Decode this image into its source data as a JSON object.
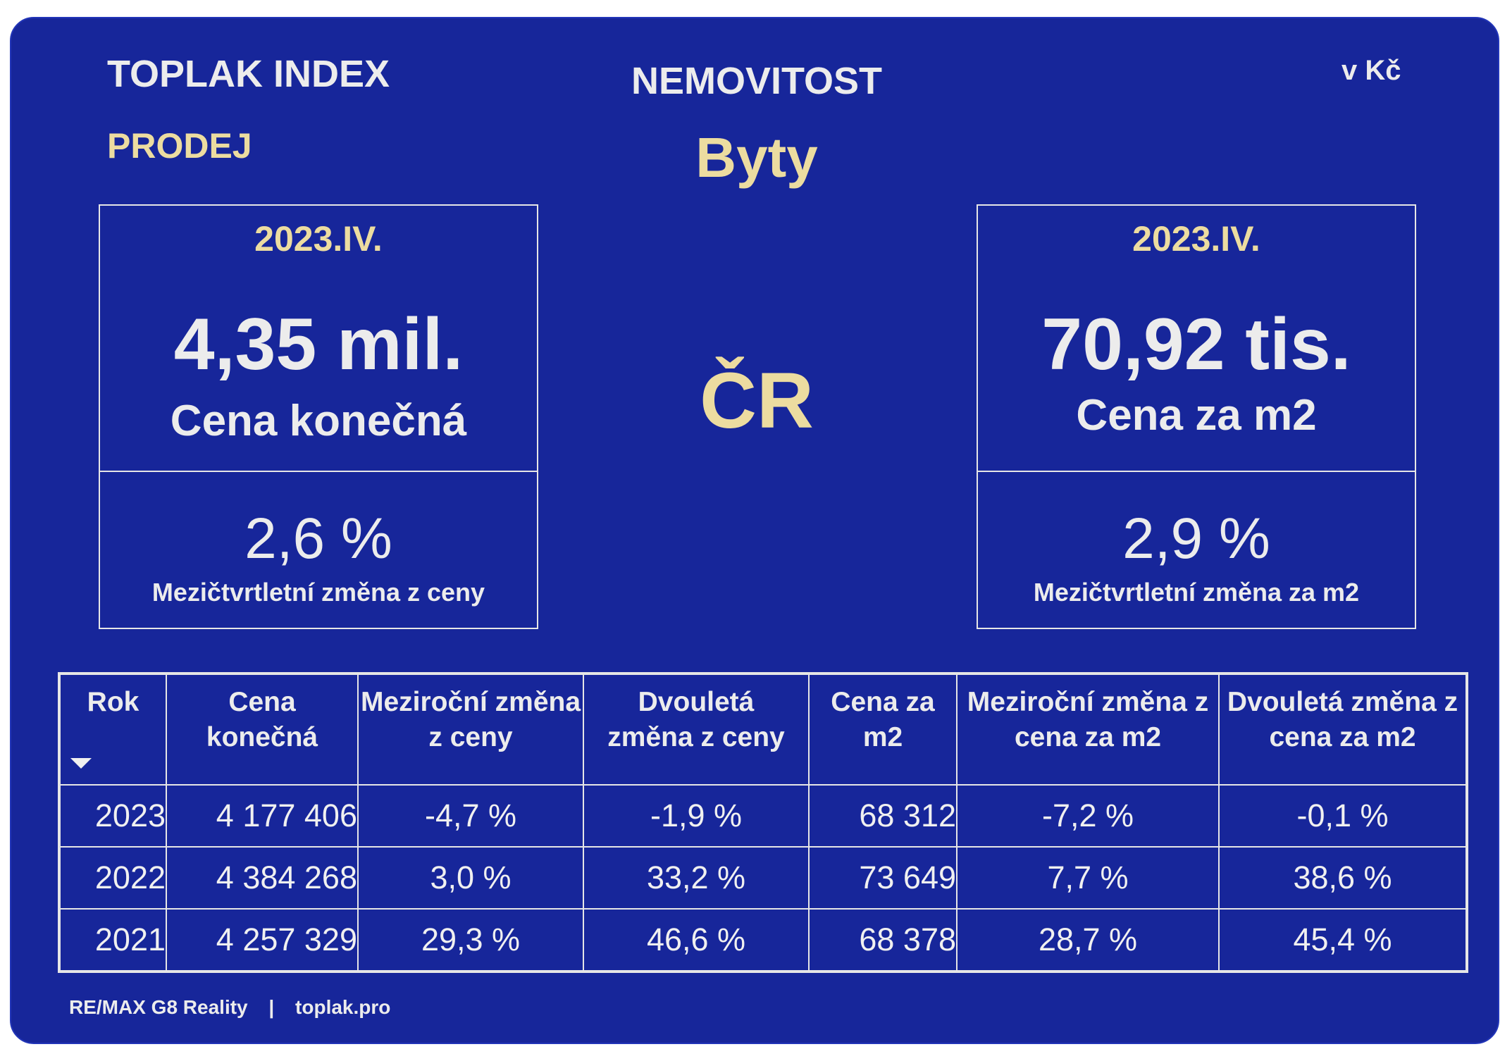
{
  "header": {
    "brand": "TOPLAK INDEX",
    "mode": "PRODEJ",
    "category_label": "NEMOVITOST",
    "category_value": "Byty",
    "currency": "v Kč"
  },
  "region": "ČR",
  "card_left": {
    "period": "2023.IV.",
    "value": "4,35 mil.",
    "label": "Cena konečná",
    "change": "2,6 %",
    "change_label": "Mezičtvrtletní změna z ceny"
  },
  "card_right": {
    "period": "2023.IV.",
    "value": "70,92 tis.",
    "label": "Cena za m2",
    "change": "2,9 %",
    "change_label": "Mezičtvrtletní změna za m2"
  },
  "table": {
    "headers": [
      "Rok",
      "Cena konečná",
      "Meziroční změna z ceny",
      "Dvouletá změna z ceny",
      "Cena za m2",
      "Meziroční změna z cena za m2",
      "Dvouletá změna z cena za m2"
    ],
    "rows": [
      [
        "2023",
        "4 177 406",
        "-4,7 %",
        "-1,9 %",
        "68 312",
        "-7,2 %",
        "-0,1 %"
      ],
      [
        "2022",
        "4 384 268",
        "3,0 %",
        "33,2 %",
        "73 649",
        "7,7 %",
        "38,6 %"
      ],
      [
        "2021",
        "4 257 329",
        "29,3 %",
        "46,6 %",
        "68 378",
        "28,7 %",
        "45,4 %"
      ]
    ]
  },
  "footer": {
    "company": "RE/MAX G8 Reality",
    "separator": "|",
    "website": "toplak.pro"
  }
}
